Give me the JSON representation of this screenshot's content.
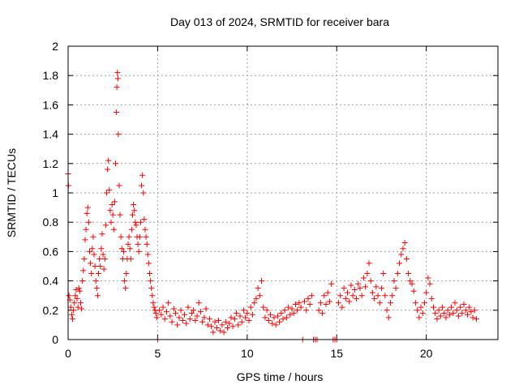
{
  "chart_data": {
    "type": "scatter",
    "title": "Day 013 of 2024, SRMTID for receiver bara",
    "xlabel": "GPS time / hours",
    "ylabel": "SRMTID / TECUs",
    "xlim": [
      0,
      24
    ],
    "ylim": [
      0,
      2
    ],
    "xticks": [
      0,
      5,
      10,
      15,
      20
    ],
    "yticks": [
      0,
      0.2,
      0.4,
      0.6,
      0.8,
      1,
      1.2,
      1.4,
      1.6,
      1.8,
      2
    ],
    "xtick_labels": [
      "0",
      "5",
      "10",
      "15",
      "20"
    ],
    "ytick_labels": [
      "0",
      "0.2",
      "0.4",
      "0.6",
      "0.8",
      "1",
      "1.2",
      "1.4",
      "1.6",
      "1.8",
      "2"
    ],
    "grid": true,
    "marker": "+",
    "color": "#ff0000",
    "series": [
      {
        "name": "SRMTID",
        "points": [
          [
            0.0,
            1.13
          ],
          [
            0.02,
            1.05
          ],
          [
            0.05,
            0.3
          ],
          [
            0.1,
            0.27
          ],
          [
            0.15,
            0.22
          ],
          [
            0.2,
            0.17
          ],
          [
            0.25,
            0.14
          ],
          [
            0.3,
            0.2
          ],
          [
            0.35,
            0.25
          ],
          [
            0.4,
            0.3
          ],
          [
            0.45,
            0.34
          ],
          [
            0.5,
            0.28
          ],
          [
            0.55,
            0.22
          ],
          [
            0.6,
            0.35
          ],
          [
            0.65,
            0.33
          ],
          [
            0.7,
            0.25
          ],
          [
            0.75,
            0.21
          ],
          [
            0.8,
            0.4
          ],
          [
            0.85,
            0.47
          ],
          [
            0.9,
            0.55
          ],
          [
            0.95,
            0.68
          ],
          [
            1.0,
            0.75
          ],
          [
            1.05,
            0.86
          ],
          [
            1.1,
            0.9
          ],
          [
            1.15,
            0.8
          ],
          [
            1.2,
            0.6
          ],
          [
            1.25,
            0.52
          ],
          [
            1.3,
            0.45
          ],
          [
            1.35,
            0.62
          ],
          [
            1.4,
            0.7
          ],
          [
            1.45,
            0.58
          ],
          [
            1.5,
            0.5
          ],
          [
            1.55,
            0.4
          ],
          [
            1.6,
            0.35
          ],
          [
            1.65,
            0.3
          ],
          [
            1.7,
            0.45
          ],
          [
            1.75,
            0.55
          ],
          [
            1.8,
            0.5
          ],
          [
            1.85,
            0.62
          ],
          [
            1.9,
            0.72
          ],
          [
            1.95,
            0.58
          ],
          [
            2.0,
            0.48
          ],
          [
            2.05,
            0.55
          ],
          [
            2.1,
            0.78
          ],
          [
            2.15,
            1.0
          ],
          [
            2.2,
            1.16
          ],
          [
            2.25,
            1.22
          ],
          [
            2.3,
            1.02
          ],
          [
            2.35,
            0.88
          ],
          [
            2.4,
            0.8
          ],
          [
            2.45,
            0.92
          ],
          [
            2.5,
            0.85
          ],
          [
            2.55,
            0.75
          ],
          [
            2.6,
            0.94
          ],
          [
            2.65,
            1.2
          ],
          [
            2.7,
            1.55
          ],
          [
            2.72,
            1.72
          ],
          [
            2.75,
            1.82
          ],
          [
            2.78,
            1.78
          ],
          [
            2.8,
            1.4
          ],
          [
            2.85,
            1.05
          ],
          [
            2.9,
            0.85
          ],
          [
            2.95,
            0.7
          ],
          [
            3.0,
            0.62
          ],
          [
            3.05,
            0.55
          ],
          [
            3.1,
            0.6
          ],
          [
            3.15,
            0.4
          ],
          [
            3.2,
            0.35
          ],
          [
            3.25,
            0.45
          ],
          [
            3.3,
            0.55
          ],
          [
            3.35,
            0.65
          ],
          [
            3.4,
            0.7
          ],
          [
            3.45,
            0.62
          ],
          [
            3.5,
            0.55
          ],
          [
            3.55,
            0.75
          ],
          [
            3.6,
            0.85
          ],
          [
            3.65,
            0.92
          ],
          [
            3.7,
            0.88
          ],
          [
            3.75,
            0.8
          ],
          [
            3.8,
            0.78
          ],
          [
            3.85,
            0.7
          ],
          [
            3.9,
            0.65
          ],
          [
            3.95,
            0.6
          ],
          [
            4.0,
            0.7
          ],
          [
            4.05,
            0.8
          ],
          [
            4.1,
            1.05
          ],
          [
            4.15,
            1.12
          ],
          [
            4.2,
            1.0
          ],
          [
            4.25,
            0.82
          ],
          [
            4.3,
            0.75
          ],
          [
            4.35,
            0.7
          ],
          [
            4.4,
            0.65
          ],
          [
            4.45,
            0.58
          ],
          [
            4.5,
            0.52
          ],
          [
            4.55,
            0.45
          ],
          [
            4.6,
            0.4
          ],
          [
            4.65,
            0.35
          ],
          [
            4.7,
            0.3
          ],
          [
            4.75,
            0.25
          ],
          [
            4.8,
            0.22
          ],
          [
            4.85,
            0.2
          ],
          [
            4.9,
            0.18
          ],
          [
            4.95,
            0.15
          ],
          [
            5.0,
            0.0
          ],
          [
            5.1,
            0.2
          ],
          [
            5.2,
            0.17
          ],
          [
            5.3,
            0.22
          ],
          [
            5.4,
            0.14
          ],
          [
            5.5,
            0.19
          ],
          [
            5.6,
            0.25
          ],
          [
            5.7,
            0.16
          ],
          [
            5.8,
            0.12
          ],
          [
            5.9,
            0.21
          ],
          [
            6.0,
            0.18
          ],
          [
            6.1,
            0.1
          ],
          [
            6.2,
            0.15
          ],
          [
            6.3,
            0.2
          ],
          [
            6.4,
            0.13
          ],
          [
            6.5,
            0.17
          ],
          [
            6.6,
            0.11
          ],
          [
            6.7,
            0.22
          ],
          [
            6.8,
            0.14
          ],
          [
            6.9,
            0.18
          ],
          [
            7.0,
            0.2
          ],
          [
            7.1,
            0.13
          ],
          [
            7.2,
            0.16
          ],
          [
            7.3,
            0.25
          ],
          [
            7.4,
            0.19
          ],
          [
            7.5,
            0.12
          ],
          [
            7.6,
            0.15
          ],
          [
            7.7,
            0.21
          ],
          [
            7.8,
            0.1
          ],
          [
            7.9,
            0.14
          ],
          [
            8.0,
            0.09
          ],
          [
            8.1,
            0.05
          ],
          [
            8.2,
            0.12
          ],
          [
            8.3,
            0.08
          ],
          [
            8.4,
            0.13
          ],
          [
            8.5,
            0.06
          ],
          [
            8.6,
            0.1
          ],
          [
            8.7,
            0.05
          ],
          [
            8.8,
            0.12
          ],
          [
            8.9,
            0.08
          ],
          [
            9.0,
            0.11
          ],
          [
            9.1,
            0.15
          ],
          [
            9.2,
            0.09
          ],
          [
            9.3,
            0.14
          ],
          [
            9.4,
            0.18
          ],
          [
            9.5,
            0.1
          ],
          [
            9.6,
            0.16
          ],
          [
            9.7,
            0.12
          ],
          [
            9.8,
            0.2
          ],
          [
            9.9,
            0.15
          ],
          [
            10.0,
            0.18
          ],
          [
            10.1,
            0.13
          ],
          [
            10.2,
            0.22
          ],
          [
            10.3,
            0.17
          ],
          [
            10.4,
            0.25
          ],
          [
            10.5,
            0.28
          ],
          [
            10.6,
            0.35
          ],
          [
            10.7,
            0.3
          ],
          [
            10.8,
            0.4
          ],
          [
            10.9,
            0.22
          ],
          [
            11.0,
            0.15
          ],
          [
            11.1,
            0.2
          ],
          [
            11.2,
            0.13
          ],
          [
            11.3,
            0.17
          ],
          [
            11.4,
            0.11
          ],
          [
            11.5,
            0.15
          ],
          [
            11.6,
            0.1
          ],
          [
            11.7,
            0.16
          ],
          [
            11.8,
            0.12
          ],
          [
            11.9,
            0.18
          ],
          [
            12.0,
            0.14
          ],
          [
            12.1,
            0.2
          ],
          [
            12.2,
            0.15
          ],
          [
            12.3,
            0.22
          ],
          [
            12.4,
            0.17
          ],
          [
            12.5,
            0.21
          ],
          [
            12.6,
            0.18
          ],
          [
            12.7,
            0.24
          ],
          [
            12.8,
            0.2
          ],
          [
            12.9,
            0.25
          ],
          [
            13.0,
            0.22
          ],
          [
            13.1,
            0.0
          ],
          [
            13.2,
            0.26
          ],
          [
            13.3,
            0.2
          ],
          [
            13.4,
            0.28
          ],
          [
            13.5,
            0.24
          ],
          [
            13.6,
            0.3
          ],
          [
            13.7,
            0.0
          ],
          [
            13.8,
            0.0
          ],
          [
            13.9,
            0.0
          ],
          [
            14.0,
            0.2
          ],
          [
            14.1,
            0.25
          ],
          [
            14.2,
            0.18
          ],
          [
            14.3,
            0.3
          ],
          [
            14.4,
            0.24
          ],
          [
            14.5,
            0.32
          ],
          [
            14.6,
            0.26
          ],
          [
            14.7,
            0.38
          ],
          [
            14.8,
            0.0
          ],
          [
            14.9,
            0.0
          ],
          [
            15.0,
            0.0
          ],
          [
            15.1,
            0.25
          ],
          [
            15.2,
            0.3
          ],
          [
            15.3,
            0.22
          ],
          [
            15.4,
            0.35
          ],
          [
            15.5,
            0.28
          ],
          [
            15.6,
            0.32
          ],
          [
            15.7,
            0.26
          ],
          [
            15.8,
            0.37
          ],
          [
            15.9,
            0.3
          ],
          [
            16.0,
            0.34
          ],
          [
            16.1,
            0.28
          ],
          [
            16.2,
            0.38
          ],
          [
            16.3,
            0.35
          ],
          [
            16.4,
            0.3
          ],
          [
            16.5,
            0.42
          ],
          [
            16.6,
            0.36
          ],
          [
            16.7,
            0.45
          ],
          [
            16.8,
            0.52
          ],
          [
            16.9,
            0.4
          ],
          [
            17.0,
            0.32
          ],
          [
            17.1,
            0.28
          ],
          [
            17.2,
            0.36
          ],
          [
            17.3,
            0.3
          ],
          [
            17.4,
            0.25
          ],
          [
            17.5,
            0.35
          ],
          [
            17.6,
            0.45
          ],
          [
            17.7,
            0.3
          ],
          [
            17.8,
            0.2
          ],
          [
            17.9,
            0.15
          ],
          [
            18.0,
            0.25
          ],
          [
            18.1,
            0.3
          ],
          [
            18.2,
            0.4
          ],
          [
            18.3,
            0.35
          ],
          [
            18.4,
            0.45
          ],
          [
            18.5,
            0.52
          ],
          [
            18.6,
            0.58
          ],
          [
            18.7,
            0.62
          ],
          [
            18.8,
            0.66
          ],
          [
            18.9,
            0.55
          ],
          [
            19.0,
            0.45
          ],
          [
            19.1,
            0.4
          ],
          [
            19.2,
            0.38
          ],
          [
            19.3,
            0.33
          ],
          [
            19.4,
            0.25
          ],
          [
            19.5,
            0.2
          ],
          [
            19.6,
            0.15
          ],
          [
            19.7,
            0.22
          ],
          [
            19.8,
            0.18
          ],
          [
            19.9,
            0.25
          ],
          [
            20.0,
            0.32
          ],
          [
            20.1,
            0.42
          ],
          [
            20.2,
            0.38
          ],
          [
            20.3,
            0.28
          ],
          [
            20.4,
            0.22
          ],
          [
            20.5,
            0.18
          ],
          [
            20.6,
            0.14
          ],
          [
            20.7,
            0.2
          ],
          [
            20.8,
            0.16
          ],
          [
            20.9,
            0.22
          ],
          [
            21.0,
            0.18
          ],
          [
            21.1,
            0.15
          ],
          [
            21.2,
            0.2
          ],
          [
            21.3,
            0.17
          ],
          [
            21.4,
            0.22
          ],
          [
            21.5,
            0.18
          ],
          [
            21.6,
            0.25
          ],
          [
            21.7,
            0.2
          ],
          [
            21.8,
            0.16
          ],
          [
            21.9,
            0.22
          ],
          [
            22.0,
            0.18
          ],
          [
            22.1,
            0.24
          ],
          [
            22.2,
            0.2
          ],
          [
            22.3,
            0.17
          ],
          [
            22.4,
            0.22
          ],
          [
            22.5,
            0.19
          ],
          [
            22.6,
            0.15
          ],
          [
            22.7,
            0.2
          ],
          [
            22.8,
            0.14
          ]
        ]
      }
    ]
  }
}
